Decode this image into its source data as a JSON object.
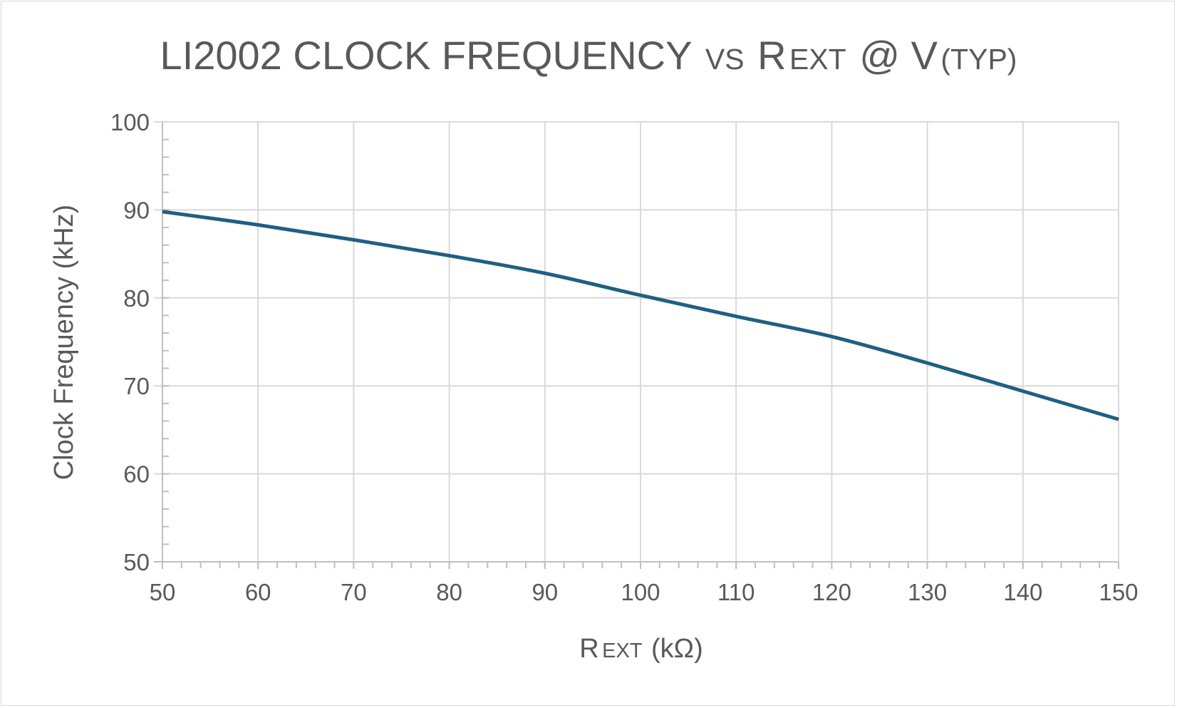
{
  "chart_data": {
    "type": "line",
    "title": {
      "main": "LI2002 CLOCK FREQUENCY",
      "vs": "VS",
      "r": "R",
      "ext": "EXT",
      "at": "@ V",
      "typ": "(TYP)"
    },
    "xlabel": {
      "r": "R",
      "ext": "EXT",
      "unit": "(kΩ)"
    },
    "ylabel": "Clock Frequency (kHz)",
    "xlim": [
      50,
      150
    ],
    "ylim": [
      50,
      100
    ],
    "x_ticks": [
      50,
      60,
      70,
      80,
      90,
      100,
      110,
      120,
      130,
      140,
      150
    ],
    "y_ticks": [
      50,
      60,
      70,
      80,
      90,
      100
    ],
    "x_minor_step": 2,
    "y_minor_step": 2,
    "grid": true,
    "legend": "none",
    "series": [
      {
        "color": "#1f5f82",
        "x": [
          50,
          60,
          70,
          80,
          90,
          100,
          110,
          120,
          130,
          140,
          150
        ],
        "y": [
          89.8,
          88.3,
          86.6,
          84.8,
          82.8,
          80.3,
          77.9,
          75.6,
          72.6,
          69.4,
          66.2
        ]
      }
    ]
  }
}
